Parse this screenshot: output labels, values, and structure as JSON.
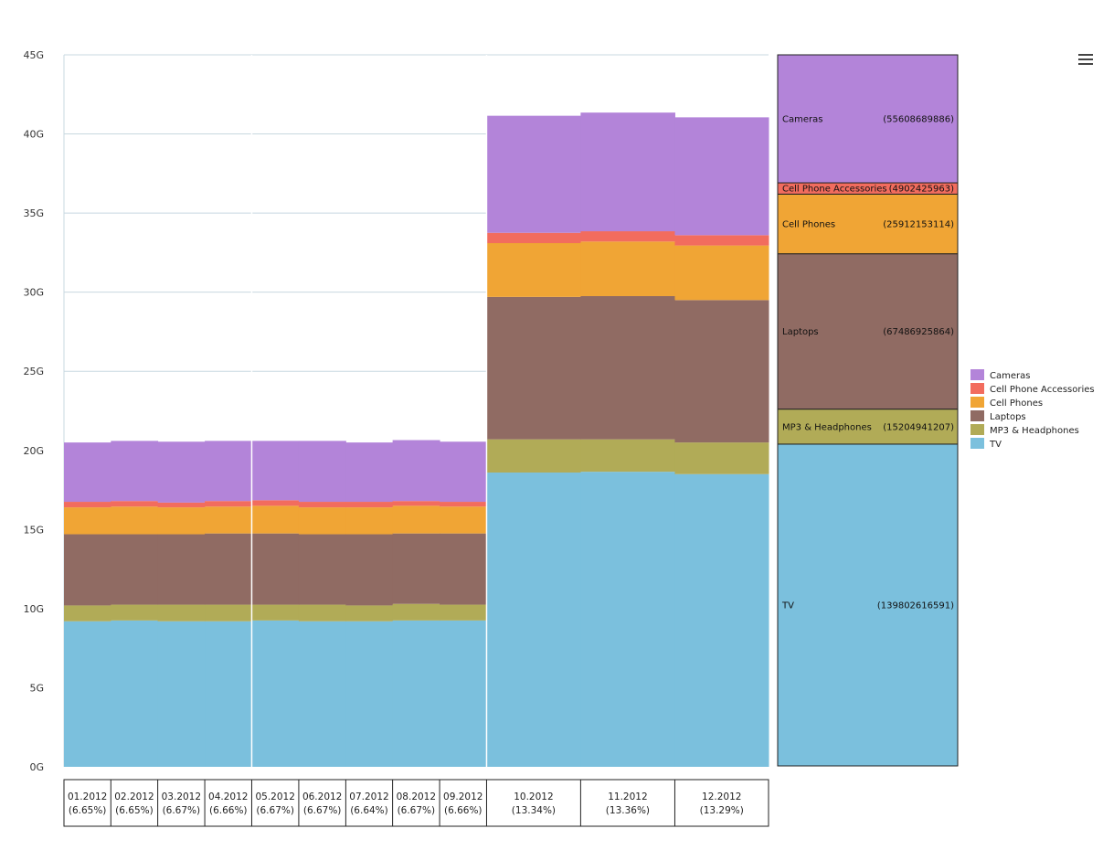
{
  "chart_data": {
    "type": "marimekko",
    "title": "",
    "xlabel": "",
    "ylabel": "",
    "ylim": [
      0,
      45000000000
    ],
    "ytick_labels": [
      "0G",
      "5G",
      "10G",
      "15G",
      "20G",
      "25G",
      "30G",
      "35G",
      "40G",
      "45G"
    ],
    "grid": true,
    "legend_position": "right",
    "columns": [
      {
        "label": "01.2012",
        "share": "(6.65%)"
      },
      {
        "label": "02.2012",
        "share": "(6.65%)"
      },
      {
        "label": "03.2012",
        "share": "(6.67%)"
      },
      {
        "label": "04.2012",
        "share": "(6.66%)"
      },
      {
        "label": "05.2012",
        "share": "(6.67%)"
      },
      {
        "label": "06.2012",
        "share": "(6.67%)"
      },
      {
        "label": "07.2012",
        "share": "(6.64%)"
      },
      {
        "label": "08.2012",
        "share": "(6.67%)"
      },
      {
        "label": "09.2012",
        "share": "(6.66%)"
      },
      {
        "label": "10.2012",
        "share": "(13.34%)"
      },
      {
        "label": "11.2012",
        "share": "(13.36%)"
      },
      {
        "label": "12.2012",
        "share": "(13.29%)"
      }
    ],
    "column_widths": [
      6.65,
      6.65,
      6.67,
      6.66,
      6.67,
      6.67,
      6.64,
      6.67,
      6.66,
      13.34,
      13.36,
      13.29
    ],
    "groups": [
      [
        0,
        3
      ],
      [
        4,
        8
      ],
      [
        9,
        11
      ]
    ],
    "series": [
      {
        "name": "TV",
        "color": "#7bc0dd",
        "values": [
          9.2,
          9.25,
          9.2,
          9.2,
          9.25,
          9.2,
          9.2,
          9.25,
          9.25,
          18.6,
          18.65,
          18.5
        ]
      },
      {
        "name": "MP3 & Headphones",
        "color": "#b1ab57",
        "values": [
          1.0,
          1.0,
          1.05,
          1.05,
          1.0,
          1.05,
          1.0,
          1.05,
          1.0,
          2.1,
          2.05,
          2.0
        ]
      },
      {
        "name": "Laptops",
        "color": "#906b63",
        "values": [
          4.5,
          4.45,
          4.45,
          4.5,
          4.5,
          4.45,
          4.5,
          4.45,
          4.5,
          9.0,
          9.05,
          9.0
        ]
      },
      {
        "name": "Cell Phones",
        "color": "#f0a535",
        "values": [
          1.7,
          1.75,
          1.7,
          1.7,
          1.75,
          1.7,
          1.7,
          1.75,
          1.7,
          3.4,
          3.45,
          3.45
        ]
      },
      {
        "name": "Cell Phone Accessories",
        "color": "#f26c5e",
        "values": [
          0.35,
          0.35,
          0.3,
          0.35,
          0.35,
          0.35,
          0.35,
          0.3,
          0.3,
          0.65,
          0.65,
          0.65
        ]
      },
      {
        "name": "Cameras",
        "color": "#b384d9",
        "values": [
          3.75,
          3.8,
          3.85,
          3.8,
          3.75,
          3.85,
          3.75,
          3.85,
          3.8,
          7.4,
          7.5,
          7.45
        ]
      }
    ],
    "values_unit": "G",
    "summary_bar": {
      "items": [
        {
          "name": "TV",
          "label": "TV",
          "value": "(139802616591)",
          "amount": 139802616591
        },
        {
          "name": "MP3 & Headphones",
          "label": "MP3 & Headphones",
          "value": "(15204941207)",
          "amount": 15204941207
        },
        {
          "name": "Laptops",
          "label": "Laptops",
          "value": "(67486925864)",
          "amount": 67486925864
        },
        {
          "name": "Cell Phones",
          "label": "Cell Phones",
          "value": "(25912153114)",
          "amount": 25912153114
        },
        {
          "name": "Cell Phone Accessories",
          "label": "Cell Phone Accessories",
          "value": "(4902425963)",
          "amount": 4902425963
        },
        {
          "name": "Cameras",
          "label": "Cameras",
          "value": "(55608689886)",
          "amount": 55608689886
        }
      ]
    },
    "legend": [
      "Cameras",
      "Cell Phone Accessories",
      "Cell Phones",
      "Laptops",
      "MP3 & Headphones",
      "TV"
    ]
  },
  "toolbar": {
    "menu_icon": "hamburger-menu-icon"
  }
}
